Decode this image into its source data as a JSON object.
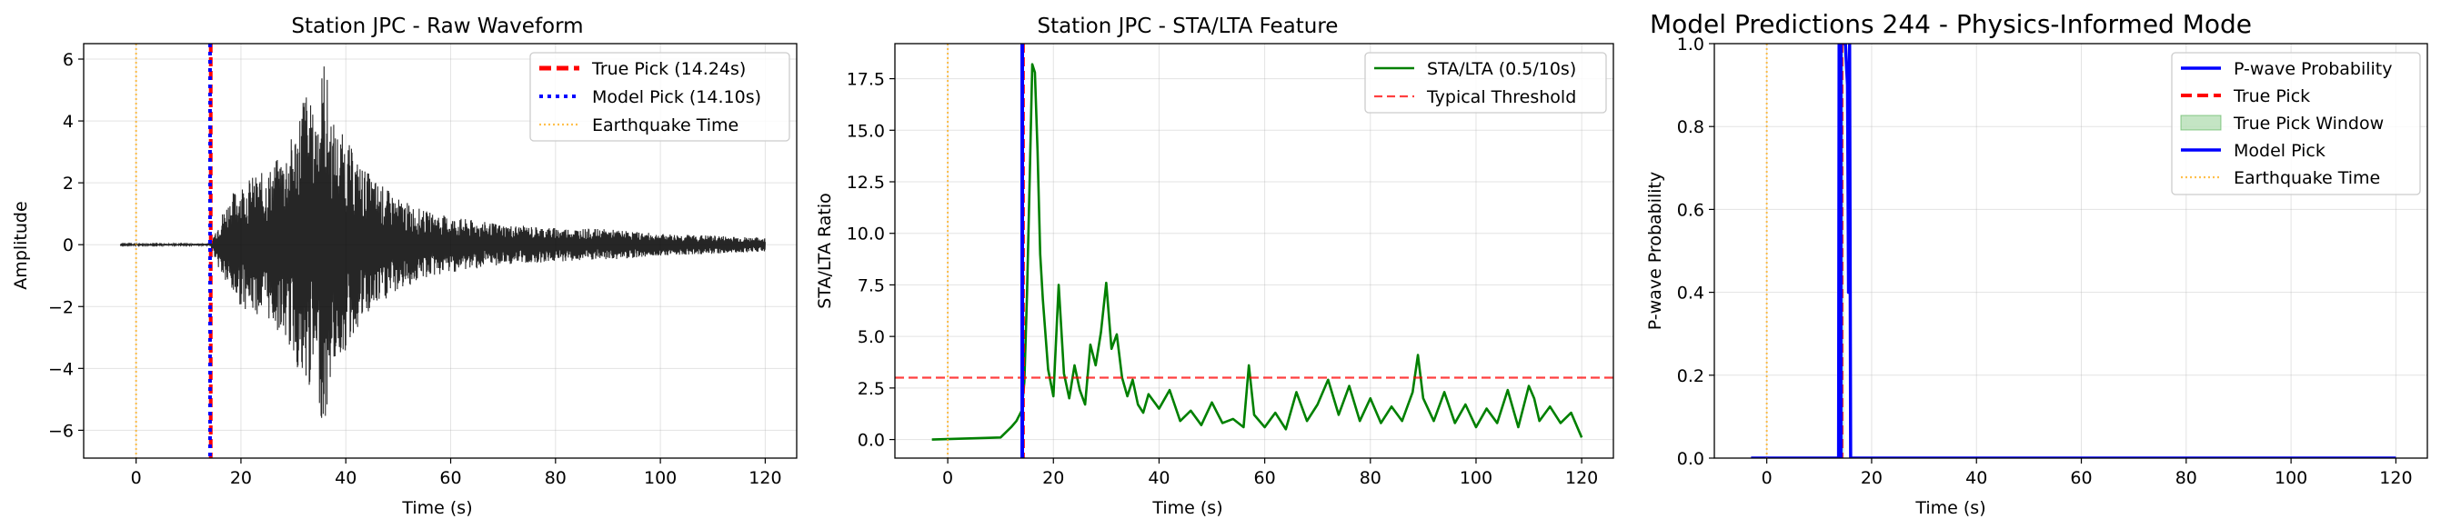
{
  "chart_data": [
    {
      "type": "line",
      "title": "Station JPC - Raw Waveform",
      "xlabel": "Time (s)",
      "ylabel": "Amplitude",
      "xlim": [
        -10,
        126
      ],
      "ylim": [
        -6.9,
        6.5
      ],
      "xticks": [
        0,
        20,
        40,
        60,
        80,
        100,
        120
      ],
      "yticks": [
        -6,
        -4,
        -2,
        0,
        2,
        4,
        6
      ],
      "grid": true,
      "legend_position": "top-right",
      "series": [
        {
          "name": "",
          "kind": "waveform",
          "color": "#000000",
          "x": [
            -3,
            0,
            5,
            10,
            14.24,
            16,
            18,
            20,
            22,
            25,
            28,
            30,
            31,
            32,
            34,
            35,
            36,
            37,
            38,
            40,
            42,
            45,
            50,
            55,
            60,
            70,
            80,
            90,
            100,
            110,
            120
          ],
          "y_envelope": [
            0.02,
            0.03,
            0.03,
            0.03,
            0.05,
            0.9,
            1.6,
            2.0,
            2.2,
            2.4,
            3.0,
            3.6,
            4.2,
            5.3,
            4.2,
            5.3,
            6.3,
            4.5,
            3.8,
            3.5,
            2.8,
            2.2,
            1.5,
            1.1,
            0.9,
            0.65,
            0.55,
            0.5,
            0.35,
            0.3,
            0.22
          ]
        },
        {
          "name": "True Pick (14.24s)",
          "kind": "vline",
          "x": 14.24,
          "color": "#ff0000",
          "dash": "dashed"
        },
        {
          "name": "Model Pick (14.10s)",
          "kind": "vline",
          "x": 14.1,
          "color": "#0000ff",
          "dash": "dotted"
        },
        {
          "name": "Earthquake Time",
          "kind": "vline",
          "x": 0,
          "color": "#ffa500",
          "dash": "dotted"
        }
      ],
      "legend": [
        "True Pick (14.24s)",
        "Model Pick (14.10s)",
        "Earthquake Time"
      ]
    },
    {
      "type": "line",
      "title": "Station JPC - STA/LTA Feature",
      "xlabel": "Time (s)",
      "ylabel": "STA/LTA Ratio",
      "xlim": [
        -10,
        126
      ],
      "ylim": [
        -0.9,
        19.2
      ],
      "xticks": [
        0,
        20,
        40,
        60,
        80,
        100,
        120
      ],
      "yticks": [
        0.0,
        2.5,
        5.0,
        7.5,
        10.0,
        12.5,
        15.0,
        17.5
      ],
      "grid": true,
      "legend_position": "top-right",
      "series": [
        {
          "name": "STA/LTA (0.5/10s)",
          "color": "#008000",
          "x": [
            -3,
            10,
            12,
            13,
            14,
            14.5,
            15,
            15.5,
            16,
            16.5,
            17,
            17.5,
            18,
            19,
            20,
            21,
            22,
            23,
            24,
            25,
            26,
            27,
            28,
            29,
            30,
            31,
            32,
            33,
            34,
            35,
            36,
            37,
            38,
            40,
            42,
            44,
            46,
            48,
            50,
            52,
            54,
            56,
            57,
            58,
            60,
            62,
            64,
            66,
            68,
            70,
            72,
            74,
            76,
            78,
            80,
            82,
            84,
            86,
            88,
            89,
            90,
            92,
            94,
            96,
            98,
            100,
            102,
            104,
            106,
            108,
            110,
            111,
            112,
            114,
            116,
            118,
            120
          ],
          "y": [
            0.0,
            0.1,
            0.6,
            0.9,
            1.4,
            2.8,
            7.0,
            12.5,
            18.2,
            17.8,
            14.0,
            9.0,
            6.8,
            3.4,
            2.1,
            7.5,
            3.2,
            2.0,
            3.6,
            2.4,
            1.7,
            4.6,
            3.6,
            5.2,
            7.6,
            4.4,
            5.1,
            3.0,
            2.1,
            2.9,
            1.7,
            1.3,
            2.2,
            1.5,
            2.4,
            0.9,
            1.4,
            0.7,
            1.8,
            0.8,
            1.0,
            0.6,
            3.6,
            1.2,
            0.6,
            1.3,
            0.5,
            2.3,
            0.9,
            1.7,
            2.9,
            1.2,
            2.6,
            0.9,
            2.0,
            0.8,
            1.6,
            0.9,
            2.3,
            4.1,
            2.0,
            0.9,
            2.3,
            0.8,
            1.7,
            0.6,
            1.5,
            0.8,
            2.4,
            0.6,
            2.6,
            2.0,
            0.9,
            1.6,
            0.8,
            1.3,
            0.1
          ]
        },
        {
          "name": "Typical Threshold",
          "kind": "hline",
          "y": 3.0,
          "color": "#ff0000",
          "dash": "dashed"
        },
        {
          "name": "",
          "kind": "vline",
          "x": 14.24,
          "color": "#ff0000",
          "dash": "dashed"
        },
        {
          "name": "",
          "kind": "vline",
          "x": 14.1,
          "color": "#0000ff",
          "dash": "solid"
        },
        {
          "name": "",
          "kind": "vline",
          "x": 0,
          "color": "#ffa500",
          "dash": "dotted"
        }
      ],
      "legend": [
        "STA/LTA (0.5/10s)",
        "Typical Threshold"
      ]
    },
    {
      "type": "line",
      "title": "Model Predictions 244 - Physics-Informed Mode",
      "xlabel": "Time (s)",
      "ylabel": "P-wave Probability",
      "xlim": [
        -10,
        126
      ],
      "ylim": [
        0.0,
        1.0
      ],
      "xticks": [
        0,
        20,
        40,
        60,
        80,
        100,
        120
      ],
      "yticks": [
        0.0,
        0.2,
        0.4,
        0.6,
        0.8,
        1.0
      ],
      "grid": true,
      "legend_position": "top-right",
      "series": [
        {
          "name": "P-wave Probability",
          "color": "#0000ff",
          "x": [
            -3,
            13.7,
            13.8,
            14.1,
            14.4,
            14.7,
            15.0,
            15.2,
            15.4,
            15.6,
            15.8,
            16.0,
            120
          ],
          "y": [
            0.0,
            0.0,
            1.0,
            1.0,
            1.0,
            1.0,
            1.0,
            0.95,
            0.9,
            0.4,
            1.0,
            0.0,
            0.0
          ]
        },
        {
          "name": "True Pick",
          "kind": "vline",
          "x": 14.24,
          "color": "#ff0000",
          "dash": "dashed"
        },
        {
          "name": "True Pick Window",
          "kind": "span",
          "x": [
            13.74,
            14.74
          ],
          "color": "#2ca02c"
        },
        {
          "name": "Model Pick",
          "kind": "vline",
          "x": 14.1,
          "color": "#0000ff",
          "dash": "solid"
        },
        {
          "name": "Earthquake Time",
          "kind": "vline",
          "x": 0,
          "color": "#ffa500",
          "dash": "dotted"
        }
      ],
      "legend": [
        "P-wave Probability",
        "True Pick",
        "True Pick Window",
        "Model Pick",
        "Earthquake Time"
      ]
    }
  ]
}
